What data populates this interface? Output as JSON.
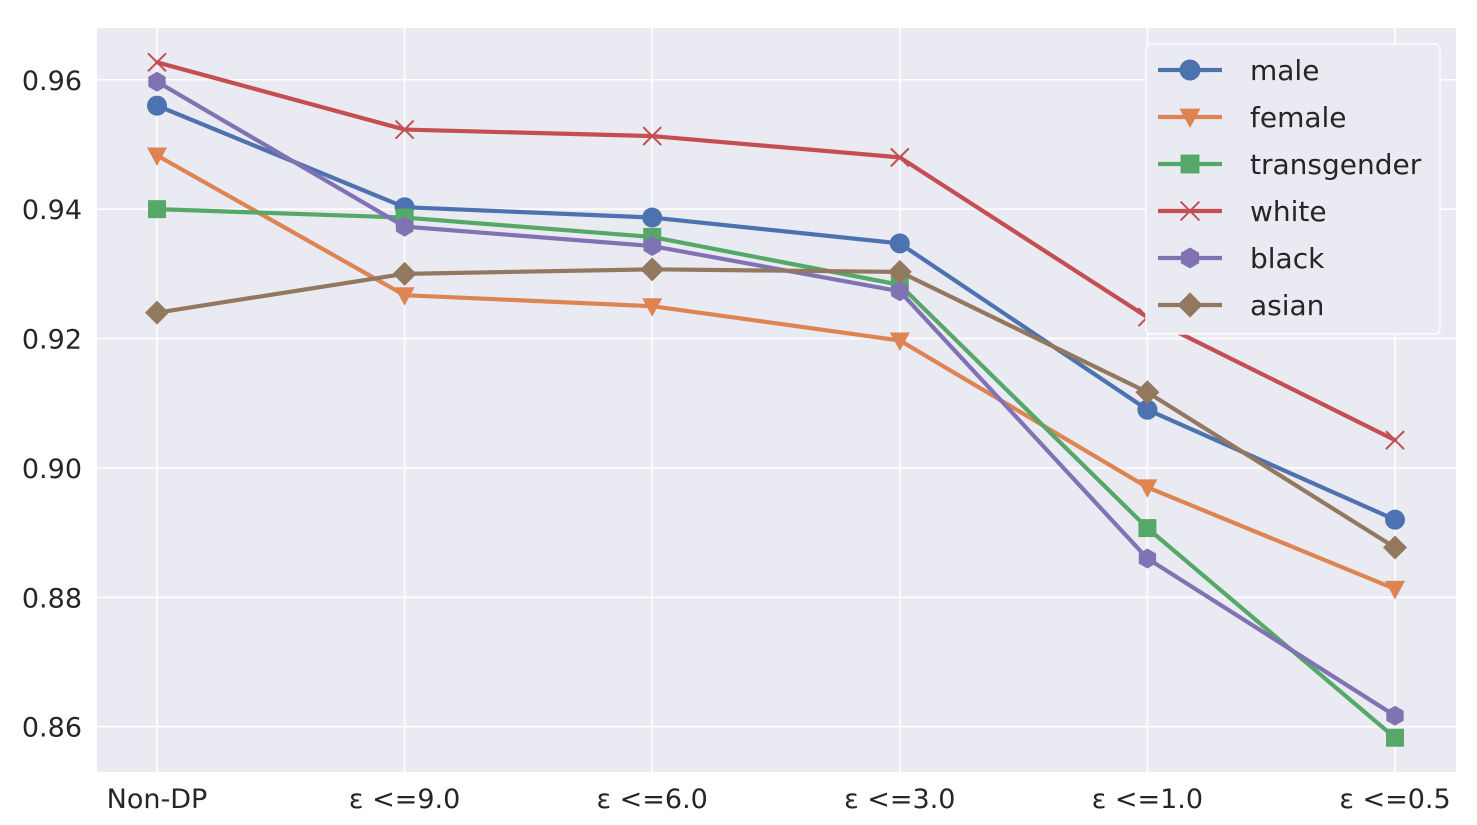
{
  "chart_data": {
    "type": "line",
    "title": "",
    "xlabel": "",
    "ylabel": "",
    "categories": [
      "Non-DP",
      "ε <=9.0",
      "ε <=6.0",
      "ε <=3.0",
      "ε <=1.0",
      "ε <=0.5"
    ],
    "ylim": [
      0.853,
      0.968
    ],
    "yticks": [
      "0.86",
      "0.88",
      "0.90",
      "0.92",
      "0.94",
      "0.96"
    ],
    "grid": true,
    "legend_position": "top-right",
    "background_color": "#EAEAF2",
    "series": [
      {
        "name": "male",
        "color": "#4C72B0",
        "marker": "circle",
        "values": [
          0.956,
          0.9403,
          0.9387,
          0.9347,
          0.909,
          0.892
        ]
      },
      {
        "name": "female",
        "color": "#DD8452",
        "marker": "triangle-down",
        "values": [
          0.9483,
          0.9267,
          0.925,
          0.9197,
          0.897,
          0.8813
        ]
      },
      {
        "name": "transgender",
        "color": "#55A868",
        "marker": "square",
        "values": [
          0.94,
          0.9387,
          0.9357,
          0.9283,
          0.8907,
          0.8583
        ]
      },
      {
        "name": "white",
        "color": "#C44E52",
        "marker": "x",
        "values": [
          0.9627,
          0.9523,
          0.9513,
          0.948,
          0.9233,
          0.9043
        ]
      },
      {
        "name": "black",
        "color": "#8172B3",
        "marker": "hexagon",
        "values": [
          0.9597,
          0.9373,
          0.9343,
          0.9273,
          0.886,
          0.8617
        ]
      },
      {
        "name": "asian",
        "color": "#937860",
        "marker": "diamond",
        "values": [
          0.924,
          0.93,
          0.9307,
          0.9303,
          0.9117,
          0.8877
        ]
      }
    ]
  }
}
